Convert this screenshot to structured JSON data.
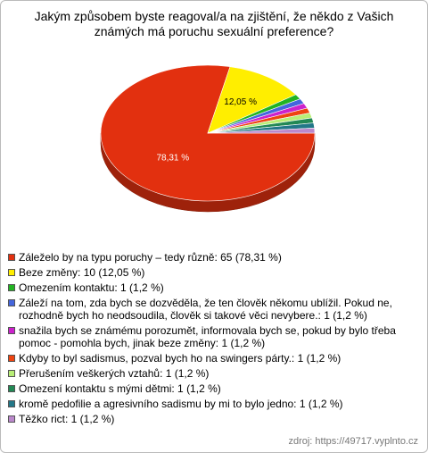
{
  "chart_data": {
    "type": "pie",
    "title": "Jakým způsobem byste reagoval/a na zjištění, že někdo z Vašich známých má poruchu sexuální preference?",
    "series": [
      {
        "name": "Záleželo by na typu poruchy – tedy různě: 65 (78,31 %)",
        "color": "#e2300f"
      },
      {
        "name": "Beze změny: 10 (12,05 %)",
        "color": "#ffee00"
      },
      {
        "name": "Omezením kontaktu: 1 (1,2 %)",
        "color": "#22b322"
      },
      {
        "name": "Záleží na tom, zda bych se dozvěděla, že ten člověk někomu ublížil. Pokud ne, rozhodně bych ho neodsoudila, člověk si takové věci nevybere.: 1 (1,2 %)",
        "color": "#4466dd"
      },
      {
        "name": "snažila bych se známému porozumět, informovala bych se, pokud by bylo třeba pomoc - pomohla bych, jinak beze změny: 1 (1,2 %)",
        "color": "#cc22cc"
      },
      {
        "name": "Kdyby to byl sadismus, pozval bych ho na swingers párty.: 1 (1,2 %)",
        "color": "#ee4411"
      },
      {
        "name": "Přerušením veškerých vztahů: 1 (1,2 %)",
        "color": "#b8ee77"
      },
      {
        "name": "Omezení kontaktu s mými dětmi: 1 (1,2 %)",
        "color": "#228855"
      },
      {
        "name": "kromě pedofilie a agresivního sadismu by mi to bylo jedno: 1 (1,2 %)",
        "color": "#227788"
      },
      {
        "name": "Těžko rict: 1 (1,2 %)",
        "color": "#bb88cc"
      }
    ],
    "values": [
      78.31,
      12.05,
      1.2,
      1.2,
      1.2,
      1.2,
      1.2,
      1.2,
      1.2,
      1.2
    ],
    "value_labels": [
      "78,31 %",
      "12,05 %",
      null,
      null,
      null,
      null,
      null,
      null,
      null,
      null
    ],
    "source": "zdroj: https://49717.vyplnto.cz"
  }
}
